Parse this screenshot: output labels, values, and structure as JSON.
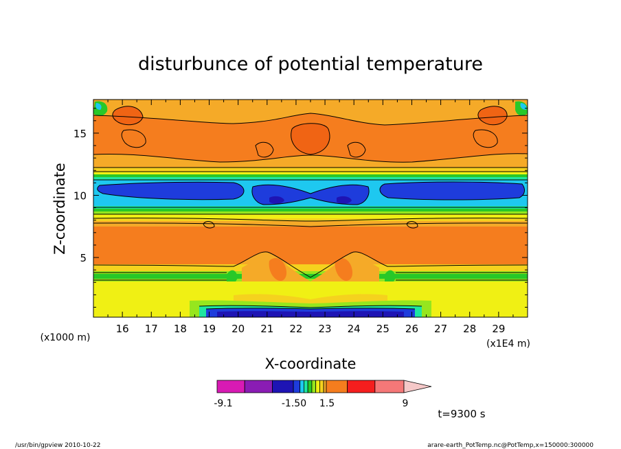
{
  "chart_data": {
    "type": "heatmap",
    "title": "disturbunce of potential temperature",
    "xlabel": "X-coordinate",
    "ylabel": "Z-coordinate",
    "x_unit_label": "(x1E4 m)",
    "y_unit_label": "(x1000 m)",
    "xlim": [
      15.0,
      30.0
    ],
    "ylim": [
      0.2,
      17.7
    ],
    "x_ticks": [
      "16",
      "17",
      "18",
      "19",
      "20",
      "21",
      "22",
      "23",
      "24",
      "25",
      "26",
      "27",
      "28",
      "29"
    ],
    "y_ticks": [
      "5",
      "10",
      "15"
    ],
    "colorbar": {
      "tick_labels": [
        "-9.1",
        "-1.50",
        "1.5",
        "9"
      ],
      "min": -9.1,
      "max": 9,
      "bands": [
        {
          "color": "#d81ab4",
          "low": -9.1,
          "high": -7.0
        },
        {
          "color": "#8a1cb4",
          "low": -7.0,
          "high": -5.0
        },
        {
          "color": "#1e14b4",
          "low": -5.0,
          "high": -3.0
        },
        {
          "color": "#1e3cdc",
          "low": -3.0,
          "high": -1.5
        },
        {
          "color": "#1ec8f0",
          "low": -1.5,
          "high": -1.0
        },
        {
          "color": "#1ee6a0",
          "low": -1.0,
          "high": -0.6
        },
        {
          "color": "#28c828",
          "low": -0.6,
          "high": -0.2
        },
        {
          "color": "#96e61e",
          "low": -0.2,
          "high": 0.2
        },
        {
          "color": "#f0f014",
          "low": 0.2,
          "high": 0.6
        },
        {
          "color": "#f5d21e",
          "low": 0.6,
          "high": 1.0
        },
        {
          "color": "#f5aa28",
          "low": 1.0,
          "high": 1.5
        },
        {
          "color": "#f57d1e",
          "low": 1.5,
          "high": 3.5
        },
        {
          "color": "#f51e1e",
          "low": 3.5,
          "high": 6.0
        },
        {
          "color": "#f57878",
          "low": 6.0,
          "high": 9.0
        }
      ],
      "overflow_color": "#f5c8c8"
    },
    "layers": [
      {
        "z_range": [
          0.2,
          0.6
        ],
        "value": "-3.0 to -5.0",
        "color": "#1e14b4"
      },
      {
        "z_range": [
          0.6,
          1.5
        ],
        "value": "0.2 to 0.6",
        "color": "#f0f014"
      },
      {
        "z_range": [
          1.5,
          3.5
        ],
        "value": "0.6 to 1.5",
        "color": "#f5d21e"
      },
      {
        "z_range": [
          3.5,
          8.5
        ],
        "value": "1.5 to 3.5",
        "color": "#f57d1e"
      },
      {
        "z_range": [
          9.0,
          12.0
        ],
        "value": "-1.5 to -5.0",
        "color": "#1e3cdc"
      },
      {
        "z_range": [
          12.0,
          17.7
        ],
        "value": "1.0 to 3.5",
        "color": "#f57d1e"
      }
    ]
  },
  "annotations": {
    "time": "t=9300 s",
    "footer_left": "/usr/bin/gpview   2010-10-22",
    "footer_right": "arare-earth_PotTemp.nc@PotTemp,x=150000:300000"
  },
  "colors": {
    "yellow": "#f0f014",
    "yellow_orange": "#f5d21e",
    "light_orange": "#f5aa28",
    "orange": "#f57d1e",
    "deep_orange": "#f06414",
    "green": "#28c828",
    "light_green": "#96e61e",
    "teal": "#1ee6a0",
    "cyan": "#1ec8f0",
    "blue": "#1e3cdc",
    "dark_blue": "#1e14b4"
  }
}
